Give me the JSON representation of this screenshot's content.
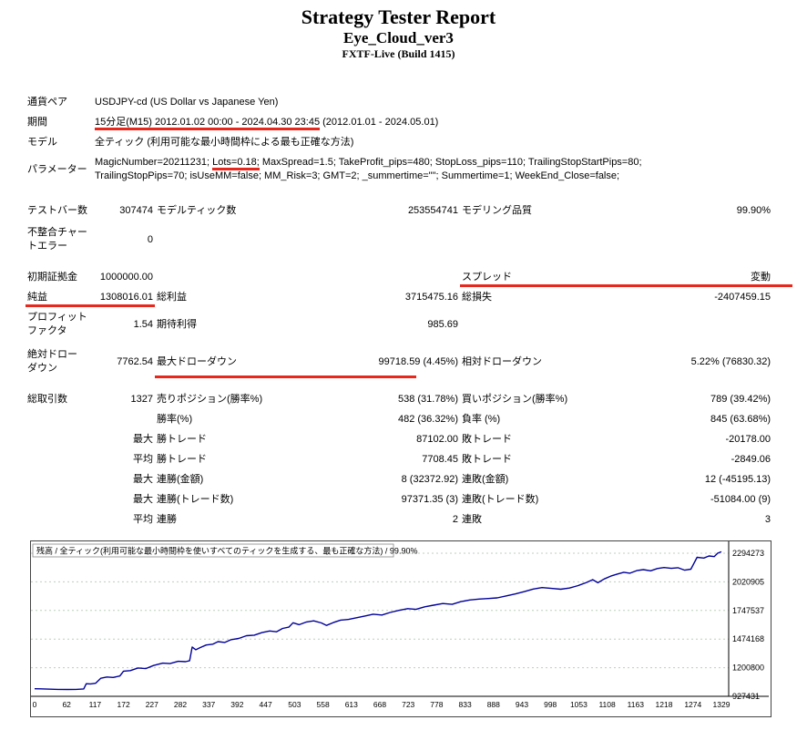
{
  "header": {
    "title": "Strategy Tester Report",
    "subtitle": "Eye_Cloud_ver3",
    "build": "FXTF-Live (Build 1415)"
  },
  "colors": {
    "highlight_red": "#e8271d",
    "curve_blue": "#000099",
    "grid_line": "#bccfbc"
  },
  "report": {
    "symbol": {
      "label": "通貨ペア",
      "value": "USDJPY-cd (US Dollar vs Japanese Yen)"
    },
    "period": {
      "label": "期間",
      "value_highlight": "15分足(M15) 2012.01.02 00:00 - 2024.04.30 23:45",
      "value_rest": " (2012.01.01 - 2024.05.01)"
    },
    "model": {
      "label": "モデル",
      "value": "全ティック (利用可能な最小時間枠による最も正確な方法)"
    },
    "parameters": {
      "label": "パラメーター",
      "pre": "MagicNumber=20211231; ",
      "highlight": "Lots=0.18;",
      "post": " MaxSpread=1.5; TakeProfit_pips=480; StopLoss_pips=110; TrailingStopStartPips=80;",
      "line2": "TrailingStopPips=70; isUseMM=false; MM_Risk=3; GMT=2; _summertime=\"\"; Summertime=1; WeekEnd_Close=false;"
    },
    "bars": {
      "label": "テストバー数",
      "value": "307474",
      "label2": "モデルティック数",
      "value2": "253554741",
      "label3": "モデリング品質",
      "value3": "99.90%"
    },
    "mismatched": {
      "label": "不整合チャー\nトエラー",
      "value": "0"
    },
    "deposit": {
      "label": "初期証拠金",
      "value": "1000000.00",
      "label3": "スプレッド",
      "value3": "変動"
    },
    "netprofit": {
      "label": "純益",
      "value": "1308016.01",
      "label2": "総利益",
      "value2": "3715475.16",
      "label3": "総損失",
      "value3": "-2407459.15"
    },
    "profitfactor": {
      "label": "プロフィット\nファクタ",
      "value": "1.54",
      "label2": "期待利得",
      "value2": "985.69"
    },
    "drawdown": {
      "label": "絶対ドロー\nダウン",
      "value": "7762.54",
      "label2": "最大ドローダウン",
      "value2": "99718.59 (4.45%)",
      "label3": "相対ドローダウン",
      "value3": "5.22% (76830.32)"
    },
    "trades": {
      "label": "総取引数",
      "value": "1327",
      "label2": "売りポジション(勝率%)",
      "value2": "538 (31.78%)",
      "label3": "買いポジション(勝率%)",
      "value3": "789 (39.42%)"
    },
    "winrate": {
      "label2": "勝率(%)",
      "value2": "482 (36.32%)",
      "label3": "負率 (%)",
      "value3": "845 (63.68%)"
    },
    "largest": {
      "label": "最大",
      "label2": "勝トレード",
      "value2": "87102.00",
      "label3": "敗トレード",
      "value3": "-20178.00"
    },
    "average": {
      "label": "平均",
      "label2": "勝トレード",
      "value2": "7708.45",
      "label3": "敗トレード",
      "value3": "-2849.06"
    },
    "maxconsec_amount": {
      "label": "最大",
      "label2": "連勝(金額)",
      "value2": "8 (32372.92)",
      "label3": "連敗(金額)",
      "value3": "12 (-45195.13)"
    },
    "maxconsec_count": {
      "label": "最大",
      "label2": "連勝(トレード数)",
      "value2": "97371.35 (3)",
      "label3": "連敗(トレード数)",
      "value3": "-51084.00 (9)"
    },
    "avgconsec": {
      "label": "平均",
      "label2": "連勝",
      "value2": "2",
      "label3": "連敗",
      "value3": "3"
    }
  },
  "chart_data": {
    "type": "line",
    "title": "残高 / 全ティック(利用可能な最小時間枠を使いすべてのティックを生成する、最も正確な方法) / 99.90%",
    "xlabel": "",
    "ylabel": "",
    "x_range": [
      0,
      1329
    ],
    "x_ticks": [
      0,
      62,
      117,
      172,
      227,
      282,
      337,
      392,
      447,
      503,
      558,
      613,
      668,
      723,
      778,
      833,
      888,
      943,
      998,
      1053,
      1108,
      1163,
      1218,
      1274,
      1329
    ],
    "y_ticks": [
      927431,
      1200800,
      1474168,
      1747537,
      2020905,
      2294273
    ],
    "y_axis_side": "right",
    "grid": true,
    "line_color": "#000099",
    "series": [
      {
        "name": "残高",
        "points": [
          [
            0,
            1000000
          ],
          [
            12,
            998500
          ],
          [
            25,
            996200
          ],
          [
            45,
            993500
          ],
          [
            65,
            992300
          ],
          [
            80,
            993600
          ],
          [
            95,
            998000
          ],
          [
            100,
            1048000
          ],
          [
            108,
            1046000
          ],
          [
            118,
            1052000
          ],
          [
            128,
            1100000
          ],
          [
            140,
            1112000
          ],
          [
            152,
            1108000
          ],
          [
            165,
            1122000
          ],
          [
            172,
            1168000
          ],
          [
            185,
            1173000
          ],
          [
            200,
            1198000
          ],
          [
            215,
            1192000
          ],
          [
            230,
            1222000
          ],
          [
            248,
            1244000
          ],
          [
            262,
            1240000
          ],
          [
            278,
            1262000
          ],
          [
            292,
            1258000
          ],
          [
            300,
            1268000
          ],
          [
            305,
            1398000
          ],
          [
            312,
            1372000
          ],
          [
            320,
            1392000
          ],
          [
            332,
            1418000
          ],
          [
            345,
            1425000
          ],
          [
            355,
            1450000
          ],
          [
            368,
            1442000
          ],
          [
            380,
            1468000
          ],
          [
            395,
            1480000
          ],
          [
            410,
            1506000
          ],
          [
            425,
            1512000
          ],
          [
            440,
            1536000
          ],
          [
            455,
            1552000
          ],
          [
            468,
            1544000
          ],
          [
            480,
            1576000
          ],
          [
            492,
            1588000
          ],
          [
            500,
            1630000
          ],
          [
            512,
            1612000
          ],
          [
            525,
            1636000
          ],
          [
            540,
            1648000
          ],
          [
            555,
            1628000
          ],
          [
            565,
            1605000
          ],
          [
            578,
            1632000
          ],
          [
            592,
            1655000
          ],
          [
            608,
            1662000
          ],
          [
            625,
            1680000
          ],
          [
            640,
            1695000
          ],
          [
            655,
            1712000
          ],
          [
            672,
            1704000
          ],
          [
            688,
            1728000
          ],
          [
            705,
            1748000
          ],
          [
            722,
            1765000
          ],
          [
            738,
            1758000
          ],
          [
            755,
            1782000
          ],
          [
            772,
            1798000
          ],
          [
            790,
            1814000
          ],
          [
            808,
            1806000
          ],
          [
            825,
            1832000
          ],
          [
            842,
            1848000
          ],
          [
            860,
            1856000
          ],
          [
            878,
            1862000
          ],
          [
            895,
            1868000
          ],
          [
            912,
            1886000
          ],
          [
            930,
            1905000
          ],
          [
            948,
            1928000
          ],
          [
            965,
            1952000
          ],
          [
            982,
            1966000
          ],
          [
            1000,
            1958000
          ],
          [
            1018,
            1950000
          ],
          [
            1035,
            1962000
          ],
          [
            1052,
            1985000
          ],
          [
            1068,
            2015000
          ],
          [
            1080,
            2042000
          ],
          [
            1090,
            2012000
          ],
          [
            1102,
            2048000
          ],
          [
            1115,
            2076000
          ],
          [
            1128,
            2096000
          ],
          [
            1140,
            2112000
          ],
          [
            1152,
            2104000
          ],
          [
            1165,
            2128000
          ],
          [
            1178,
            2138000
          ],
          [
            1192,
            2126000
          ],
          [
            1205,
            2148000
          ],
          [
            1218,
            2158000
          ],
          [
            1232,
            2150000
          ],
          [
            1245,
            2156000
          ],
          [
            1258,
            2132000
          ],
          [
            1270,
            2142000
          ],
          [
            1282,
            2255000
          ],
          [
            1295,
            2248000
          ],
          [
            1305,
            2268000
          ],
          [
            1315,
            2262000
          ],
          [
            1322,
            2295000
          ],
          [
            1329,
            2308016
          ]
        ]
      }
    ]
  }
}
